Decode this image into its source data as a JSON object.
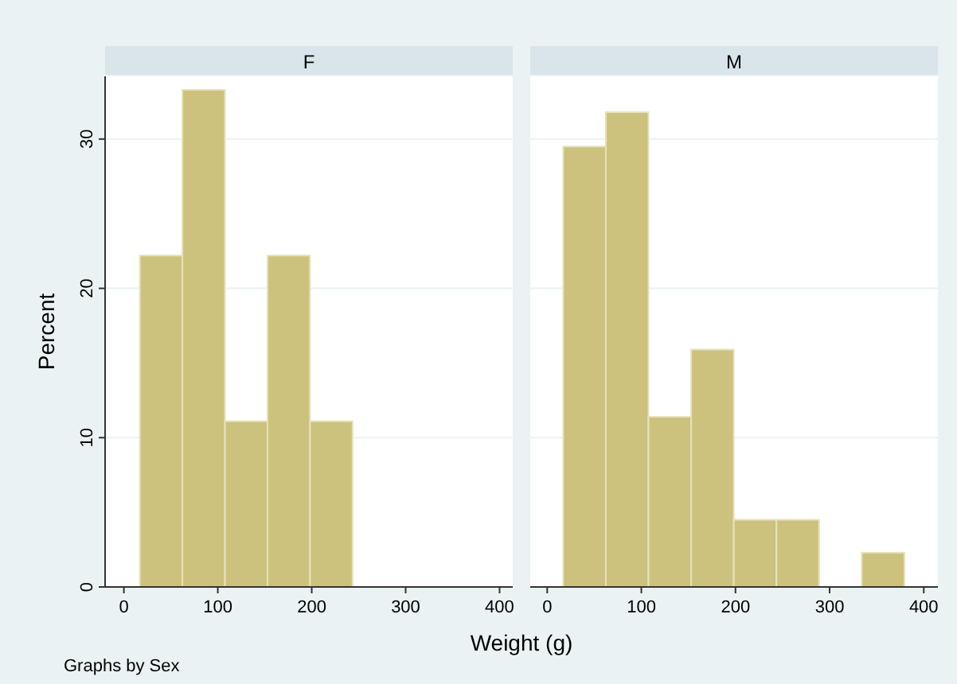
{
  "chart_data": [
    {
      "type": "histogram",
      "title": "F",
      "ylabel": "Percent",
      "xlabel": "Weight (g)",
      "annotations": [
        "Graphs by Sex"
      ],
      "bins": [
        17,
        62.3,
        107.6,
        152.9,
        198.2,
        243.5
      ],
      "values": [
        22.2,
        33.3,
        11.1,
        22.2,
        11.1
      ],
      "color": "#cdc27d",
      "xlim": [
        -20,
        414
      ],
      "xticks": [
        0,
        100,
        200,
        300,
        400
      ],
      "ylim": [
        0,
        34.2
      ],
      "yticks": [
        0,
        10,
        20,
        30
      ],
      "grid": "y"
    },
    {
      "type": "histogram",
      "title": "M",
      "bins": [
        17,
        62.3,
        107.6,
        152.9,
        198.2,
        243.5,
        288.8,
        334.1,
        379.4
      ],
      "values": [
        29.5,
        31.8,
        11.4,
        15.9,
        4.5,
        4.5,
        0,
        2.3
      ],
      "color": "#cdc27d",
      "xlim": [
        -18,
        415
      ],
      "xticks": [
        0,
        100,
        200,
        300,
        400
      ],
      "ylim": [
        0,
        34.2
      ],
      "yticks": [
        0,
        10,
        20,
        30
      ],
      "grid": "y",
      "tick_labels": "x"
    }
  ]
}
